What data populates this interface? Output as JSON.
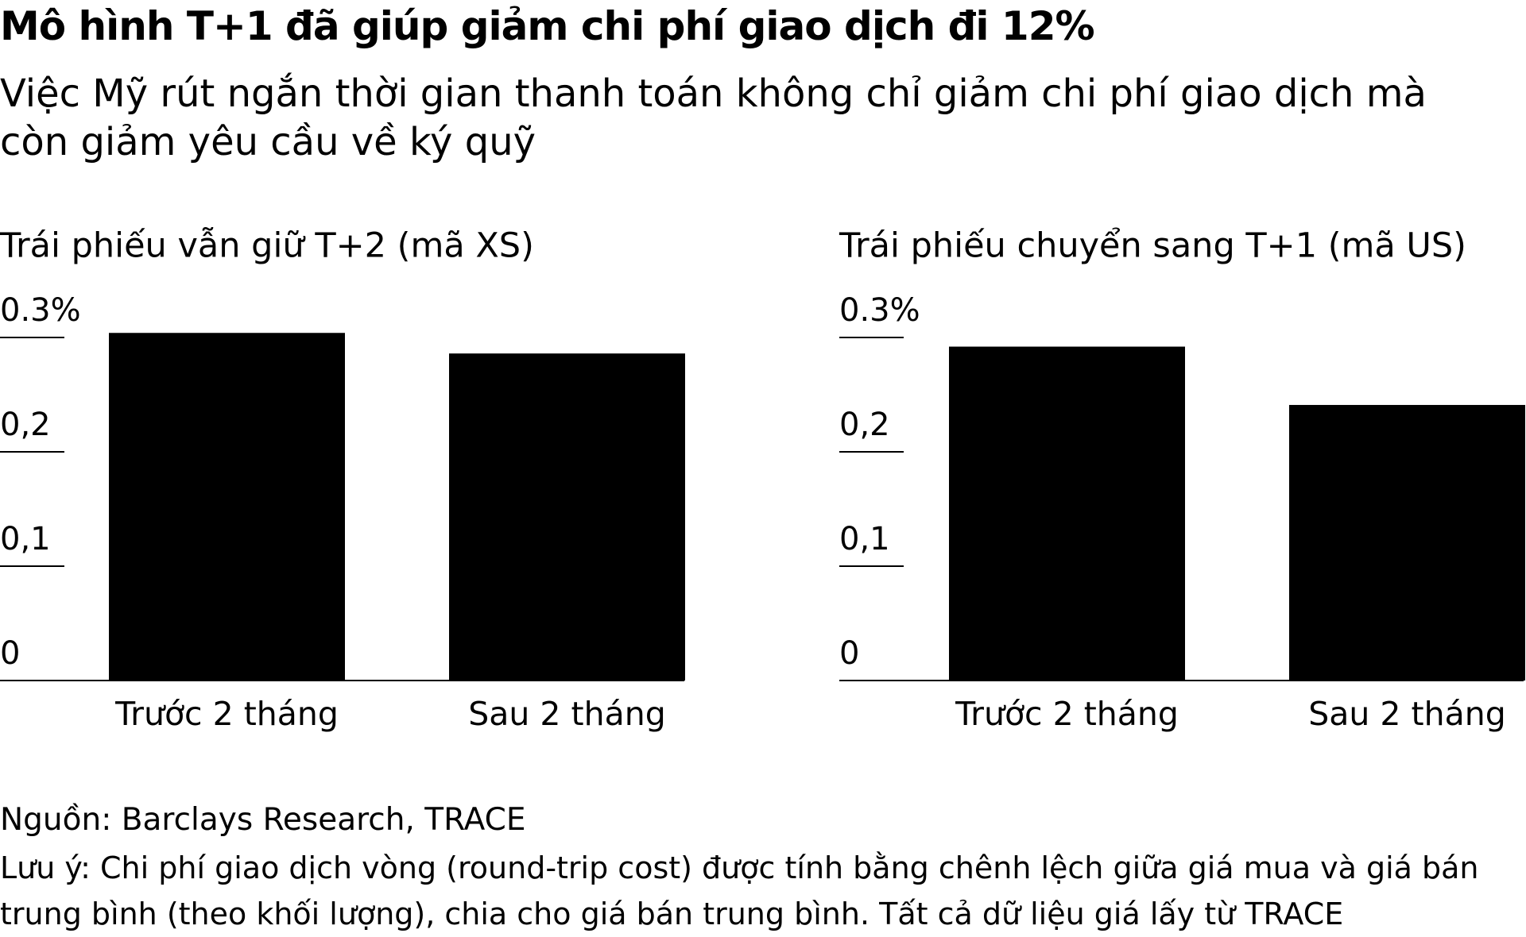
{
  "title": "Mô hình T+1 đã giúp giảm chi phí giao dịch đi 12%",
  "subtitle": "Việc Mỹ rút ngắn thời gian thanh toán không chỉ giảm chi phí giao dịch mà còn giảm yêu cầu về ký quỹ",
  "source": "Nguồn: Barclays Research, TRACE",
  "note": "Lưu ý: Chi phí giao dịch vòng (round-trip cost) được tính bằng chênh lệch giữa giá mua và giá bán trung bình (theo khối lượng), chia cho giá bán trung bình. Tất cả dữ liệu giá lấy từ TRACE",
  "chart_data": [
    {
      "type": "bar",
      "title": "Trái phiếu vẫn giữ T+2 (mã XS)",
      "categories": [
        "Trước 2 tháng",
        "Sau 2 tháng"
      ],
      "values": [
        0.304,
        0.286
      ],
      "color": "#000000",
      "ylim": [
        0,
        0.31
      ],
      "yticks": [
        0,
        {
          "value": 0.1,
          "label": "0,1"
        },
        {
          "value": 0.2,
          "label": "0,2"
        },
        {
          "value": 0.3,
          "label": "0.3%"
        }
      ]
    },
    {
      "type": "bar",
      "title": "Trái phiếu chuyển sang T+1 (mã US)",
      "categories": [
        "Trước 2 tháng",
        "Sau 2 tháng"
      ],
      "values": [
        0.292,
        0.241
      ],
      "color": "#000000",
      "ylim": [
        0,
        0.31
      ],
      "yticks": [
        0,
        {
          "value": 0.1,
          "label": "0,1"
        },
        {
          "value": 0.2,
          "label": "0,2"
        },
        {
          "value": 0.3,
          "label": "0.3%"
        }
      ]
    }
  ]
}
